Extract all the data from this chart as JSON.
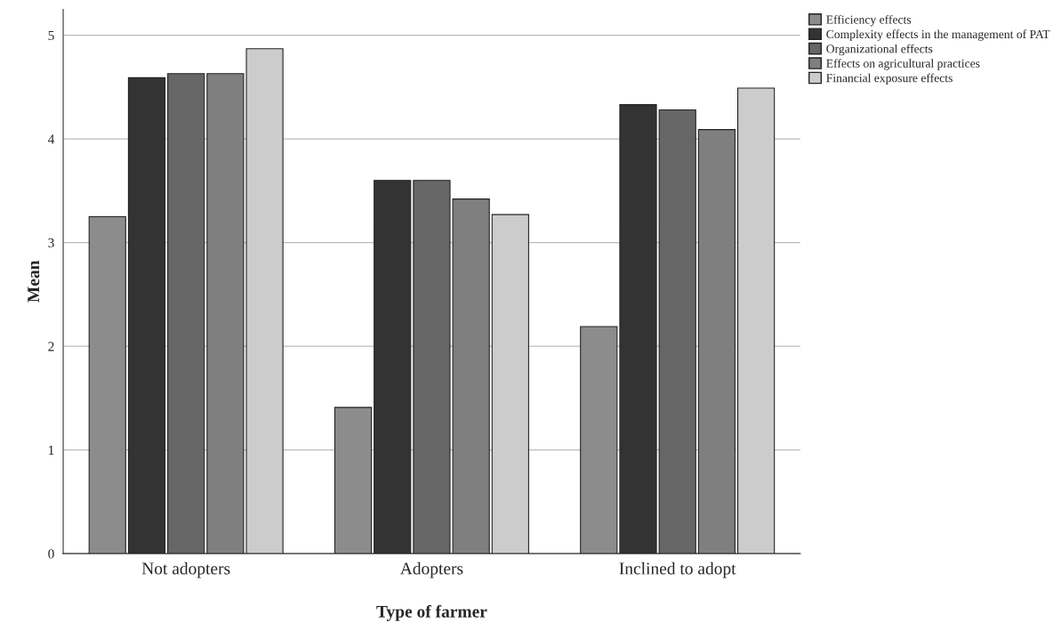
{
  "chart_data": {
    "type": "bar",
    "xlabel": "Type of farmer",
    "ylabel": "Mean",
    "categories": [
      "Not adopters",
      "Adopters",
      "Inclined to adopt"
    ],
    "series": [
      {
        "name": "Efficiency effects",
        "color": "#8c8c8c",
        "values": [
          3.25,
          1.41,
          2.19
        ]
      },
      {
        "name": "Complexity effects in the management of PAT",
        "color": "#333333",
        "values": [
          4.59,
          3.6,
          4.33
        ]
      },
      {
        "name": "Organizational effects",
        "color": "#666666",
        "values": [
          4.63,
          3.6,
          4.28
        ]
      },
      {
        "name": "Effects on agricultural practices",
        "color": "#7f7f7f",
        "values": [
          4.63,
          3.42,
          4.09
        ]
      },
      {
        "name": "Financial exposure effects",
        "color": "#cccccc",
        "values": [
          4.87,
          3.27,
          4.49
        ]
      }
    ],
    "ylim": [
      0,
      5.25
    ],
    "yticks": [
      0,
      1,
      2,
      3,
      4,
      5
    ],
    "grid": "y",
    "legend": "top right"
  }
}
